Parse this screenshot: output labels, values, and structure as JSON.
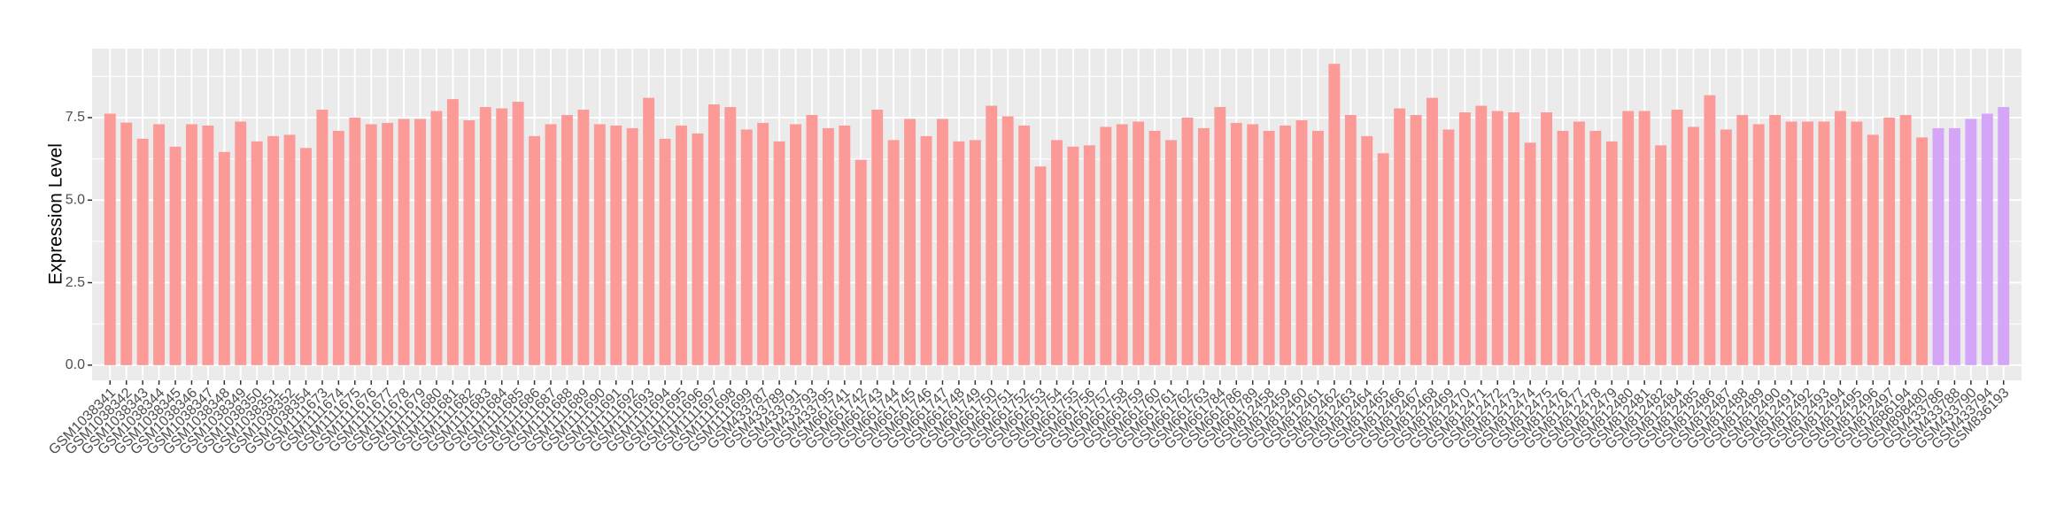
{
  "chart_data": {
    "type": "bar",
    "y_label": "Expression Level",
    "categories": [
      "GSM1038341",
      "GSM1038342",
      "GSM1038343",
      "GSM1038344",
      "GSM1038345",
      "GSM1038346",
      "GSM1038347",
      "GSM1038348",
      "GSM1038349",
      "GSM1038350",
      "GSM1038351",
      "GSM1038352",
      "GSM1038354",
      "GSM1111673",
      "GSM1111674",
      "GSM1111675",
      "GSM1111676",
      "GSM1111677",
      "GSM1111678",
      "GSM1111679",
      "GSM1111680",
      "GSM1111681",
      "GSM1111682",
      "GSM1111683",
      "GSM1111684",
      "GSM1111685",
      "GSM1111686",
      "GSM1111687",
      "GSM1111688",
      "GSM1111689",
      "GSM1111690",
      "GSM1111691",
      "GSM1111692",
      "GSM1111693",
      "GSM1111694",
      "GSM1111695",
      "GSM1111696",
      "GSM1111697",
      "GSM1111698",
      "GSM1111699",
      "GSM433787",
      "GSM433789",
      "GSM433791",
      "GSM433793",
      "GSM433795",
      "GSM661741",
      "GSM661742",
      "GSM661743",
      "GSM661744",
      "GSM661745",
      "GSM661746",
      "GSM661747",
      "GSM661748",
      "GSM661749",
      "GSM661750",
      "GSM661751",
      "GSM661752",
      "GSM661753",
      "GSM661754",
      "GSM661755",
      "GSM661756",
      "GSM661757",
      "GSM661758",
      "GSM661759",
      "GSM661760",
      "GSM661761",
      "GSM661762",
      "GSM661763",
      "GSM661784",
      "GSM661786",
      "GSM661789",
      "GSM812458",
      "GSM812459",
      "GSM812460",
      "GSM812461",
      "GSM812462",
      "GSM812463",
      "GSM812464",
      "GSM812465",
      "GSM812466",
      "GSM812467",
      "GSM812468",
      "GSM812469",
      "GSM812470",
      "GSM812471",
      "GSM812472",
      "GSM812473",
      "GSM812474",
      "GSM812475",
      "GSM812476",
      "GSM812477",
      "GSM812478",
      "GSM812479",
      "GSM812480",
      "GSM812481",
      "GSM812482",
      "GSM812484",
      "GSM812485",
      "GSM812486",
      "GSM812487",
      "GSM812488",
      "GSM812489",
      "GSM812490",
      "GSM812491",
      "GSM812492",
      "GSM812493",
      "GSM812494",
      "GSM812495",
      "GSM812496",
      "GSM812497",
      "GSM886194",
      "GSM898480",
      "GSM433786",
      "GSM433788",
      "GSM433790",
      "GSM433794",
      "GSM836193"
    ],
    "values": [
      7.62,
      7.35,
      6.86,
      7.3,
      6.62,
      7.3,
      7.26,
      6.46,
      7.38,
      6.78,
      6.94,
      6.98,
      6.58,
      7.74,
      7.1,
      7.5,
      7.3,
      7.34,
      7.46,
      7.46,
      7.7,
      8.06,
      7.42,
      7.82,
      7.78,
      7.98,
      6.94,
      7.3,
      7.58,
      7.74,
      7.3,
      7.26,
      7.18,
      8.1,
      6.86,
      7.26,
      7.02,
      7.9,
      7.82,
      7.14,
      7.34,
      6.78,
      7.3,
      7.58,
      7.18,
      7.26,
      6.22,
      7.74,
      6.82,
      7.46,
      6.94,
      7.46,
      6.78,
      6.82,
      7.86,
      7.54,
      7.26,
      6.02,
      6.82,
      6.62,
      6.66,
      7.22,
      7.3,
      7.38,
      7.1,
      6.82,
      7.5,
      7.18,
      7.82,
      7.34,
      7.3,
      7.1,
      7.26,
      7.42,
      7.1,
      9.13,
      7.58,
      6.94,
      6.42,
      7.78,
      7.58,
      8.1,
      7.14,
      7.66,
      7.86,
      7.7,
      7.66,
      6.74,
      7.66,
      7.1,
      7.38,
      7.1,
      6.78,
      7.7,
      7.7,
      6.66,
      7.74,
      7.22,
      8.18,
      7.14,
      7.58,
      7.3,
      7.58,
      7.38,
      7.38,
      7.38,
      7.7,
      7.38,
      6.98,
      7.5,
      7.58,
      6.9,
      7.18,
      7.18,
      7.46,
      7.62,
      7.82
    ],
    "colors": [
      "#fc9a98",
      "#fc9a98",
      "#fc9a98",
      "#fc9a98",
      "#fc9a98",
      "#fc9a98",
      "#fc9a98",
      "#fc9a98",
      "#fc9a98",
      "#fc9a98",
      "#fc9a98",
      "#fc9a98",
      "#fc9a98",
      "#fc9a98",
      "#fc9a98",
      "#fc9a98",
      "#fc9a98",
      "#fc9a98",
      "#fc9a98",
      "#fc9a98",
      "#fc9a98",
      "#fc9a98",
      "#fc9a98",
      "#fc9a98",
      "#fc9a98",
      "#fc9a98",
      "#fc9a98",
      "#fc9a98",
      "#fc9a98",
      "#fc9a98",
      "#fc9a98",
      "#fc9a98",
      "#fc9a98",
      "#fc9a98",
      "#fc9a98",
      "#fc9a98",
      "#fc9a98",
      "#fc9a98",
      "#fc9a98",
      "#fc9a98",
      "#fc9a98",
      "#fc9a98",
      "#fc9a98",
      "#fc9a98",
      "#fc9a98",
      "#fc9a98",
      "#fc9a98",
      "#fc9a98",
      "#fc9a98",
      "#fc9a98",
      "#fc9a98",
      "#fc9a98",
      "#fc9a98",
      "#fc9a98",
      "#fc9a98",
      "#fc9a98",
      "#fc9a98",
      "#fc9a98",
      "#fc9a98",
      "#fc9a98",
      "#fc9a98",
      "#fc9a98",
      "#fc9a98",
      "#fc9a98",
      "#fc9a98",
      "#fc9a98",
      "#fc9a98",
      "#fc9a98",
      "#fc9a98",
      "#fc9a98",
      "#fc9a98",
      "#fc9a98",
      "#fc9a98",
      "#fc9a98",
      "#fc9a98",
      "#fc9a98",
      "#fc9a98",
      "#fc9a98",
      "#fc9a98",
      "#fc9a98",
      "#fc9a98",
      "#fc9a98",
      "#fc9a98",
      "#fc9a98",
      "#fc9a98",
      "#fc9a98",
      "#fc9a98",
      "#fc9a98",
      "#fc9a98",
      "#fc9a98",
      "#fc9a98",
      "#fc9a98",
      "#fc9a98",
      "#fc9a98",
      "#fc9a98",
      "#fc9a98",
      "#fc9a98",
      "#fc9a98",
      "#fc9a98",
      "#fc9a98",
      "#fc9a98",
      "#fc9a98",
      "#fc9a98",
      "#fc9a98",
      "#fc9a98",
      "#fc9a98",
      "#fc9a98",
      "#fc9a98",
      "#fc9a98",
      "#fc9a98",
      "#fc9a98",
      "#fc9a98",
      "#d5a6f7",
      "#d5a6f7",
      "#d5a6f7",
      "#d5a6f7",
      "#d5a6f7"
    ],
    "ylim": [
      -0.46,
      9.59
    ],
    "yticks": [
      {
        "value": 0,
        "label": "0.0"
      },
      2.5,
      {
        "value": 5,
        "label": "5.0"
      },
      7.5
    ],
    "grid": true
  }
}
